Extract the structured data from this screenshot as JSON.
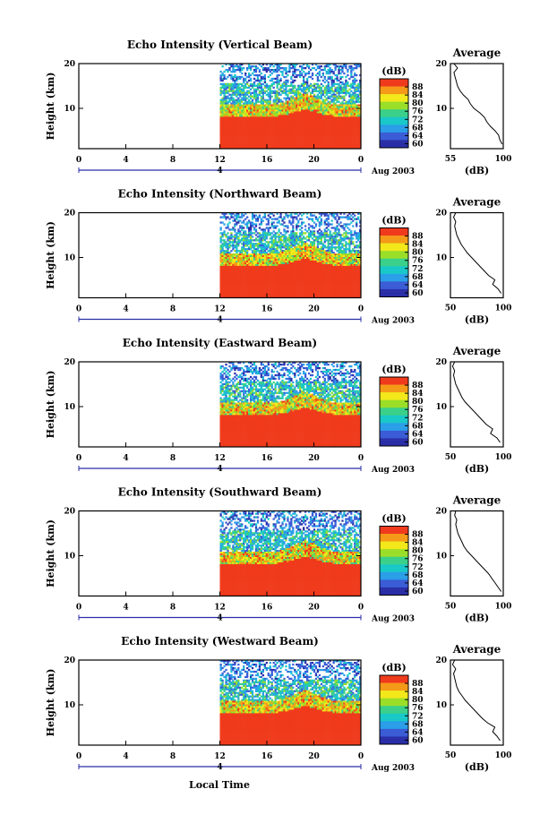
{
  "figure": {
    "bottom_label": "Local Time",
    "date_label": "Aug 2003",
    "day_label": "4",
    "colorbar_unit": "(dB)",
    "average_title": "Average",
    "average_xlabel": "(dB)",
    "height_label": "Height (km)"
  },
  "colors": {
    "scale": [
      "#2a2ea6",
      "#3a5cd6",
      "#2a9ee8",
      "#19c8c8",
      "#3ad08a",
      "#9ade28",
      "#f2e81a",
      "#f59a18",
      "#f03a1c"
    ],
    "no_data": "#ffffff",
    "axis": "#000000",
    "day_marker": "#2a2ea6"
  },
  "chart_data": [
    {
      "type": "heatmap",
      "title": "Echo Intensity (Vertical Beam)",
      "xlabel": "",
      "ylabel": "Height (km)",
      "x_ticks": [
        "0",
        "4",
        "8",
        "12",
        "16",
        "20",
        "0"
      ],
      "y_ticks": [
        "20",
        "10"
      ],
      "xlim": [
        0,
        24
      ],
      "ylim": [
        1,
        20
      ],
      "data_start_hour": 12,
      "colorbar_ticks": [
        "88",
        "84",
        "80",
        "76",
        "72",
        "68",
        "64",
        "60"
      ],
      "colorbar_range": [
        58,
        92
      ],
      "average": {
        "xlim": [
          55,
          100
        ],
        "x_ticks": [
          "55",
          "100"
        ],
        "y_ticks": [
          "20",
          "10"
        ],
        "height_km": [
          2,
          3,
          4,
          5,
          6,
          7,
          8,
          9,
          10,
          11,
          12,
          13,
          14,
          15,
          16,
          17,
          18,
          19,
          20
        ],
        "db": [
          99,
          97,
          96,
          93,
          89,
          86,
          84,
          80,
          75,
          72,
          70,
          66,
          63,
          61,
          60,
          59,
          58,
          61,
          58
        ]
      }
    },
    {
      "type": "heatmap",
      "title": "Echo Intensity (Northward Beam)",
      "xlabel": "",
      "ylabel": "Height (km)",
      "x_ticks": [
        "0",
        "4",
        "8",
        "12",
        "16",
        "20",
        "0"
      ],
      "y_ticks": [
        "20",
        "10"
      ],
      "xlim": [
        0,
        24
      ],
      "ylim": [
        1,
        20
      ],
      "data_start_hour": 12,
      "colorbar_ticks": [
        "88",
        "84",
        "80",
        "76",
        "72",
        "68",
        "64",
        "60"
      ],
      "colorbar_range": [
        58,
        92
      ],
      "average": {
        "xlim": [
          50,
          100
        ],
        "x_ticks": [
          "50",
          "100"
        ],
        "y_ticks": [
          "20",
          "10"
        ],
        "height_km": [
          2,
          3,
          4,
          5,
          6,
          7,
          8,
          9,
          10,
          11,
          12,
          13,
          14,
          15,
          16,
          17,
          18,
          19,
          20
        ],
        "db": [
          98,
          95,
          90,
          92,
          86,
          82,
          78,
          74,
          70,
          66,
          63,
          60,
          58,
          56,
          55,
          54,
          55,
          53,
          55
        ]
      }
    },
    {
      "type": "heatmap",
      "title": "Echo Intensity (Eastward Beam)",
      "xlabel": "",
      "ylabel": "Height (km)",
      "x_ticks": [
        "0",
        "4",
        "8",
        "12",
        "16",
        "20",
        "0"
      ],
      "y_ticks": [
        "20",
        "10"
      ],
      "xlim": [
        0,
        24
      ],
      "ylim": [
        1,
        20
      ],
      "data_start_hour": 12,
      "colorbar_ticks": [
        "88",
        "84",
        "80",
        "76",
        "72",
        "68",
        "64",
        "60"
      ],
      "colorbar_range": [
        58,
        92
      ],
      "average": {
        "xlim": [
          50,
          100
        ],
        "x_ticks": [
          "50",
          "100"
        ],
        "y_ticks": [
          "20",
          "10"
        ],
        "height_km": [
          2,
          3,
          4,
          5,
          6,
          7,
          8,
          9,
          10,
          11,
          12,
          13,
          14,
          15,
          16,
          17,
          18,
          19,
          20
        ],
        "db": [
          97,
          94,
          88,
          90,
          84,
          80,
          76,
          72,
          68,
          64,
          61,
          59,
          57,
          55,
          54,
          53,
          54,
          52,
          54
        ]
      }
    },
    {
      "type": "heatmap",
      "title": "Echo Intensity (Southward Beam)",
      "xlabel": "",
      "ylabel": "Height (km)",
      "x_ticks": [
        "0",
        "4",
        "8",
        "12",
        "16",
        "20",
        "0"
      ],
      "y_ticks": [
        "20",
        "10"
      ],
      "xlim": [
        0,
        24
      ],
      "ylim": [
        1,
        20
      ],
      "data_start_hour": 12,
      "colorbar_ticks": [
        "88",
        "84",
        "80",
        "76",
        "72",
        "68",
        "64",
        "60"
      ],
      "colorbar_range": [
        58,
        92
      ],
      "average": {
        "xlim": [
          50,
          100
        ],
        "x_ticks": [
          "50",
          "100"
        ],
        "y_ticks": [
          "20",
          "10"
        ],
        "height_km": [
          2,
          3,
          4,
          5,
          6,
          7,
          8,
          9,
          10,
          11,
          12,
          13,
          14,
          15,
          16,
          17,
          18,
          19,
          20
        ],
        "db": [
          98,
          95,
          92,
          89,
          86,
          82,
          78,
          74,
          70,
          66,
          63,
          61,
          59,
          57,
          56,
          55,
          56,
          54,
          55
        ]
      }
    },
    {
      "type": "heatmap",
      "title": "Echo Intensity (Westward Beam)",
      "xlabel": "Local Time",
      "ylabel": "Height (km)",
      "x_ticks": [
        "0",
        "4",
        "8",
        "12",
        "16",
        "20",
        "0"
      ],
      "y_ticks": [
        "20",
        "10"
      ],
      "xlim": [
        0,
        24
      ],
      "ylim": [
        1,
        20
      ],
      "data_start_hour": 12,
      "colorbar_ticks": [
        "88",
        "84",
        "80",
        "76",
        "72",
        "68",
        "64",
        "60"
      ],
      "colorbar_range": [
        58,
        92
      ],
      "average": {
        "xlim": [
          50,
          100
        ],
        "x_ticks": [
          "50",
          "100"
        ],
        "y_ticks": [
          "20",
          "10"
        ],
        "height_km": [
          2,
          3,
          4,
          5,
          6,
          7,
          8,
          9,
          10,
          11,
          12,
          13,
          14,
          15,
          16,
          17,
          18,
          19,
          20
        ],
        "db": [
          97,
          94,
          90,
          92,
          85,
          80,
          76,
          72,
          68,
          64,
          61,
          58,
          56,
          55,
          54,
          53,
          55,
          52,
          54
        ]
      }
    }
  ]
}
